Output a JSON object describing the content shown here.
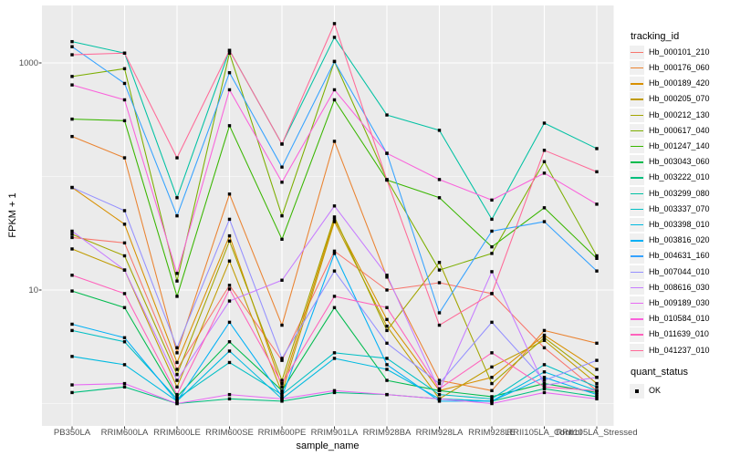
{
  "figure": {
    "background": "#FFFFFF",
    "panel_background": "#EBEBEB",
    "grid_color": "#FFFFFF",
    "axis_text_color": "#4D4D4D",
    "tick_mark_color": "#333333",
    "point_color": "#000000"
  },
  "axes": {
    "x_title": "sample_name",
    "y_title": "FPKM + 1",
    "y_ticks": [
      "1000",
      "10"
    ],
    "x_ticks": [
      "PB350LA",
      "RRIM600LA",
      "RRIM600LE",
      "RRIM600SE",
      "RRIM600PE",
      "RRIM901LA",
      "RRIM928BA",
      "RRIM928LA",
      "RRIM928LE",
      "RRII105LA_Control",
      "RRII105LA_Stressed"
    ]
  },
  "legend": {
    "color_legend_title": "tracking_id",
    "shape_legend_title": "quant_status",
    "shape_legend_items": [
      {
        "label": "OK",
        "shape": "square",
        "color": "#000000"
      }
    ]
  },
  "chart_data": {
    "type": "line",
    "y_scale": "log10",
    "xlabel": "sample_name",
    "ylabel": "FPKM + 1",
    "y_tick_values": [
      10,
      1000
    ],
    "y_minor_gridlines": [
      1,
      100
    ],
    "grid": true,
    "legend_position": "right",
    "point_marker": "black square (quant_status = OK) on every data point",
    "categories": [
      "PB350LA",
      "RRIM600LA",
      "RRIM600LE",
      "RRIM600SE",
      "RRIM600PE",
      "RRIM901LA",
      "RRIM928BA",
      "RRIM928LA",
      "RRIM928LE",
      "RRII105LA_Control",
      "RRII105LA_Stressed"
    ],
    "series": [
      {
        "name": "Hb_000101_210",
        "color": "#F8766D",
        "values": [
          29,
          26,
          2.0,
          11,
          2.4,
          22,
          10,
          11.6,
          9.3,
          3.1,
          1.3
        ]
      },
      {
        "name": "Hb_000176_060",
        "color": "#EA8331",
        "values": [
          225,
          146,
          2.8,
          70,
          4.9,
          204,
          13,
          1.6,
          1.3,
          4.4,
          3.4
        ]
      },
      {
        "name": "Hb_000189_420",
        "color": "#D89000",
        "values": [
          80,
          38,
          2.3,
          30,
          1.4,
          42,
          5.5,
          1.3,
          1.7,
          4.0,
          2.0
        ]
      },
      {
        "name": "Hb_000205_070",
        "color": "#C09B00",
        "values": [
          23,
          15,
          1.4,
          18,
          1.25,
          40,
          4.8,
          1.1,
          2.1,
          3.6,
          1.5
        ]
      },
      {
        "name": "Hb_000212_130",
        "color": "#A3A500",
        "values": [
          31,
          20,
          1.8,
          27,
          1.6,
          44,
          4.4,
          17.5,
          1.5,
          3.8,
          1.7
        ]
      },
      {
        "name": "Hb_000617_040",
        "color": "#7CAE00",
        "values": [
          760,
          890,
          12,
          1220,
          45,
          1030,
          94,
          15,
          21,
          135,
          20
        ]
      },
      {
        "name": "Hb_001247_140",
        "color": "#39B600",
        "values": [
          320,
          310,
          8.8,
          280,
          28,
          473,
          93,
          65,
          24,
          53,
          19
        ]
      },
      {
        "name": "Hb_003043_060",
        "color": "#00BB4E",
        "values": [
          9.8,
          7.0,
          1.15,
          3.5,
          1.3,
          7.0,
          1.6,
          1.3,
          1.15,
          1.5,
          1.25
        ]
      },
      {
        "name": "Hb_003222_010",
        "color": "#00BF7D",
        "values": [
          1.25,
          1.4,
          1.0,
          1.1,
          1.05,
          1.25,
          1.2,
          1.1,
          1.05,
          1.35,
          1.15
        ]
      },
      {
        "name": "Hb_003299_080",
        "color": "#00C1A3",
        "values": [
          1540,
          1220,
          65,
          1290,
          193,
          1680,
          348,
          255,
          42,
          295,
          176
        ]
      },
      {
        "name": "Hb_003337_070",
        "color": "#00BFC4",
        "values": [
          4.4,
          3.5,
          1.1,
          2.3,
          1.2,
          2.8,
          2.5,
          1.2,
          1.1,
          2.2,
          1.4
        ]
      },
      {
        "name": "Hb_003398_010",
        "color": "#00BAE0",
        "values": [
          2.6,
          2.2,
          1.05,
          2.9,
          1.1,
          2.5,
          2.0,
          1.1,
          1.05,
          1.9,
          1.3
        ]
      },
      {
        "name": "Hb_003816_020",
        "color": "#00B0F6",
        "values": [
          5.0,
          3.8,
          1.05,
          5.2,
          1.15,
          21,
          2.2,
          1.05,
          1.05,
          1.7,
          1.2
        ]
      },
      {
        "name": "Hb_004631_160",
        "color": "#35A2FF",
        "values": [
          1390,
          660,
          45,
          820,
          121,
          1030,
          160,
          6.3,
          33,
          40,
          14.7
        ]
      },
      {
        "name": "Hb_007044_010",
        "color": "#9590FF",
        "values": [
          80,
          50,
          3.1,
          42,
          2.5,
          14.7,
          3.4,
          1.5,
          5.2,
          1.6,
          2.4
        ]
      },
      {
        "name": "Hb_008616_030",
        "color": "#C77CFF",
        "values": [
          33,
          15,
          1.6,
          8.0,
          12.2,
          55,
          13.5,
          1.3,
          14.5,
          1.45,
          1.7
        ]
      },
      {
        "name": "Hb_009189_030",
        "color": "#E76BF3",
        "values": [
          1.46,
          1.5,
          1.0,
          1.2,
          1.1,
          1.3,
          1.2,
          1.1,
          1.0,
          1.25,
          1.1
        ]
      },
      {
        "name": "Hb_010584_010",
        "color": "#FA62DB",
        "values": [
          640,
          473,
          14,
          580,
          89,
          580,
          160,
          94,
          62,
          107,
          57
        ]
      },
      {
        "name": "Hb_011639_010",
        "color": "#FF62BC",
        "values": [
          13.5,
          9.3,
          1.2,
          10.2,
          1.5,
          8.8,
          7.0,
          1.35,
          2.8,
          1.4,
          1.3
        ]
      },
      {
        "name": "Hb_041237_010",
        "color": "#FF6A98",
        "values": [
          1180,
          1220,
          146,
          1290,
          193,
          2220,
          93,
          4.9,
          9.3,
          170,
          110
        ]
      }
    ]
  }
}
